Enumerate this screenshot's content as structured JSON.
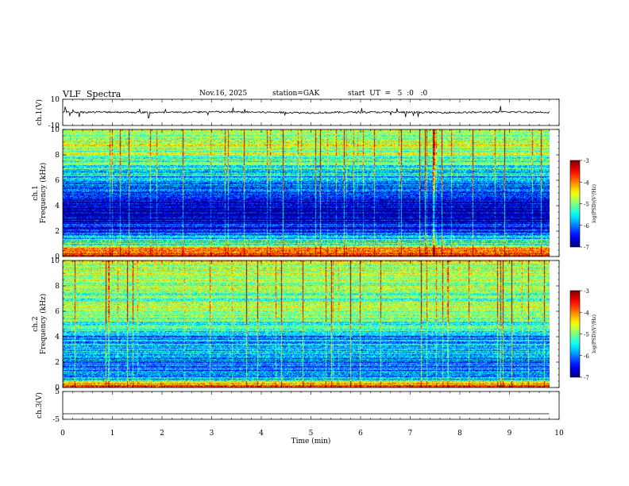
{
  "header": {
    "title": "VLF  Spectra",
    "date": "Nov.16, 2025",
    "station": "station=GAK",
    "start_ut": "start  UT  =   5  :0   :0"
  },
  "chart_data": [
    {
      "type": "line",
      "name": "ch.1 waveform",
      "ylabel": "ch.1(V)",
      "ylim": [
        -10,
        10
      ],
      "yticks": [
        "10",
        "-10"
      ],
      "x": [
        0,
        1,
        2,
        3,
        4,
        5,
        6,
        7,
        8,
        9,
        9.8
      ],
      "values": [
        0,
        0.3,
        -0.2,
        0.4,
        0.1,
        -0.3,
        0.2,
        0.0,
        -0.1,
        0.3,
        0.1
      ]
    },
    {
      "type": "heatmap",
      "name": "ch.1 spectrogram",
      "ylabel": "Frequency (kHz)",
      "channel_label": "ch.1",
      "ylim": [
        0,
        10
      ],
      "yticks": [
        "0",
        "2",
        "4",
        "6",
        "8",
        "10"
      ],
      "colorbar": {
        "label": "log(PSD)(V²/Hz)",
        "range": [
          -7,
          -3
        ],
        "ticks": [
          "-3",
          "-4",
          "-5",
          "-6",
          "-7"
        ]
      },
      "band_levels_by_kHz": [
        {
          "f": 0.3,
          "level": -3.6
        },
        {
          "f": 0.7,
          "level": -4.2
        },
        {
          "f": 1.0,
          "level": -5.2
        },
        {
          "f": 2.0,
          "level": -6.3
        },
        {
          "f": 3.0,
          "level": -6.8
        },
        {
          "f": 4.0,
          "level": -6.9
        },
        {
          "f": 5.0,
          "level": -6.4
        },
        {
          "f": 6.0,
          "level": -5.9
        },
        {
          "f": 7.0,
          "level": -5.4
        },
        {
          "f": 8.0,
          "level": -5.0
        },
        {
          "f": 9.0,
          "level": -4.8
        },
        {
          "f": 10.0,
          "level": -4.7
        }
      ]
    },
    {
      "type": "heatmap",
      "name": "ch.2 spectrogram",
      "ylabel": "Frequency (kHz)",
      "channel_label": "ch.2",
      "ylim": [
        0,
        10
      ],
      "yticks": [
        "0",
        "2",
        "4",
        "6",
        "8",
        "10"
      ],
      "colorbar": {
        "label": "log(PSD)(V²/Hz)",
        "range": [
          -7,
          -3
        ],
        "ticks": [
          "-3",
          "-4",
          "-5",
          "-6",
          "-7"
        ]
      },
      "band_levels_by_kHz": [
        {
          "f": 0.3,
          "level": -4.0
        },
        {
          "f": 0.7,
          "level": -5.8
        },
        {
          "f": 1.0,
          "level": -6.0
        },
        {
          "f": 2.0,
          "level": -6.1
        },
        {
          "f": 3.0,
          "level": -5.6
        },
        {
          "f": 4.0,
          "level": -5.9
        },
        {
          "f": 5.0,
          "level": -5.3
        },
        {
          "f": 6.2,
          "level": -4.6
        },
        {
          "f": 7.0,
          "level": -5.1
        },
        {
          "f": 8.0,
          "level": -4.9
        },
        {
          "f": 9.0,
          "level": -4.8
        },
        {
          "f": 10.0,
          "level": -4.7
        }
      ]
    },
    {
      "type": "line",
      "name": "ch.3 waveform",
      "ylabel": "ch.3(V)",
      "ylim": [
        -5,
        5
      ],
      "yticks": [
        "5",
        "-5"
      ],
      "x": [
        0,
        9.8
      ],
      "values": [
        -3,
        -3
      ]
    }
  ],
  "xaxis": {
    "xlabel": "Time  (min)",
    "xlim": [
      0,
      10
    ],
    "ticks": [
      "0",
      "1",
      "2",
      "3",
      "4",
      "5",
      "6",
      "7",
      "8",
      "9",
      "10"
    ]
  }
}
